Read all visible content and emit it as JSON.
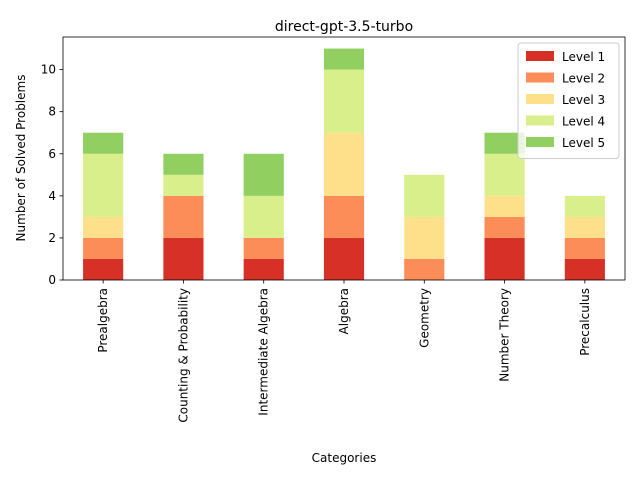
{
  "chart_data": {
    "type": "bar",
    "stacked": true,
    "title": "direct-gpt-3.5-turbo",
    "xlabel": "Categories",
    "ylabel": "Number of Solved Problems",
    "ylim": [
      0,
      11.55
    ],
    "yticks": [
      0,
      2,
      4,
      6,
      8,
      10
    ],
    "legend_position": "top-right",
    "grid": false,
    "categories": [
      "Prealgebra",
      "Counting & Probability",
      "Intermediate Algebra",
      "Algebra",
      "Geometry",
      "Number Theory",
      "Precalculus"
    ],
    "series": [
      {
        "name": "Level 1",
        "color": "#d73027",
        "values": [
          1,
          2,
          1,
          2,
          0,
          2,
          1
        ]
      },
      {
        "name": "Level 2",
        "color": "#fc8d59",
        "values": [
          1,
          2,
          1,
          2,
          1,
          1,
          1
        ]
      },
      {
        "name": "Level 3",
        "color": "#fee08b",
        "values": [
          1,
          0,
          0,
          3,
          2,
          1,
          1
        ]
      },
      {
        "name": "Level 4",
        "color": "#d9ef8b",
        "values": [
          3,
          1,
          2,
          3,
          2,
          2,
          1
        ]
      },
      {
        "name": "Level 5",
        "color": "#91cf60",
        "values": [
          1,
          1,
          2,
          1,
          0,
          1,
          0
        ]
      }
    ]
  }
}
